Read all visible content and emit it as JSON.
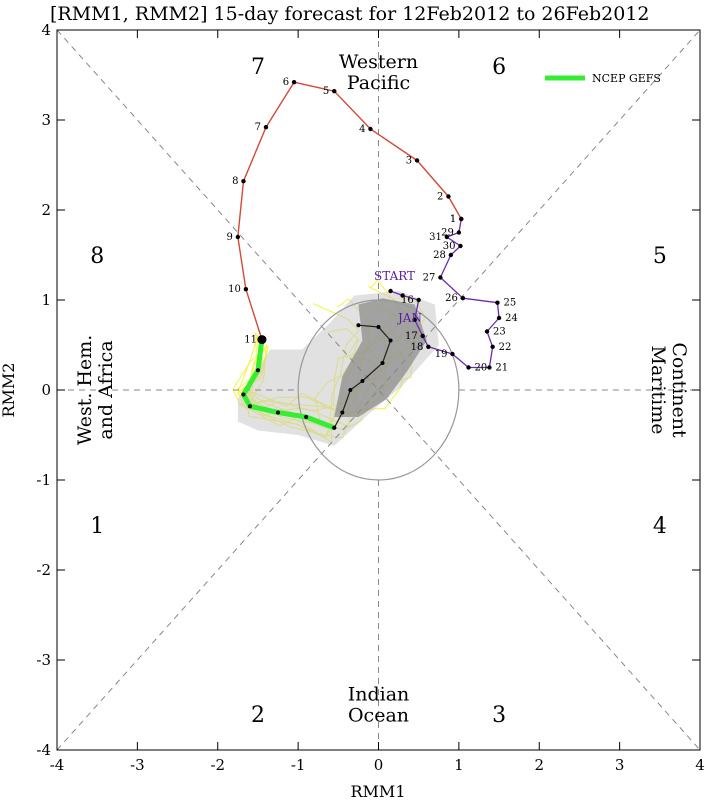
{
  "chart_data": {
    "type": "scatter",
    "title": "[RMM1, RMM2] 15-day forecast for 12Feb2012 to 26Feb2012",
    "xlabel": "RMM1",
    "ylabel": "RMM2",
    "xlim": [
      -4,
      4
    ],
    "ylim": [
      -4,
      4
    ],
    "x_ticks": [
      -4,
      -3,
      -2,
      -1,
      0,
      1,
      2,
      3,
      4
    ],
    "y_ticks": [
      -4,
      -3,
      -2,
      -1,
      0,
      1,
      2,
      3,
      4
    ],
    "phase_labels": [
      {
        "text": "7",
        "x": -1.5,
        "y": 3.6
      },
      {
        "text": "6",
        "x": 1.5,
        "y": 3.6
      },
      {
        "text": "8",
        "x": -3.5,
        "y": 1.5
      },
      {
        "text": "5",
        "x": 3.5,
        "y": 1.5
      },
      {
        "text": "1",
        "x": -3.5,
        "y": -1.5
      },
      {
        "text": "4",
        "x": 3.5,
        "y": -1.5
      },
      {
        "text": "2",
        "x": -1.5,
        "y": -3.6
      },
      {
        "text": "3",
        "x": 1.5,
        "y": -3.6
      }
    ],
    "region_labels": {
      "top": [
        "Western",
        "Pacific"
      ],
      "bottom": [
        "Indian",
        "Ocean"
      ],
      "left": [
        "West. Hem.",
        "and Africa"
      ],
      "right": [
        "Maritime",
        "Continent"
      ]
    },
    "markers": {
      "start": "START",
      "jan": "JAN"
    },
    "legend": [
      {
        "name": "NCEP GEFS",
        "color": "#33ee33"
      }
    ],
    "unit_circle_radius": 1,
    "colors": {
      "observed": "#6a2cb0",
      "forecast_mean": "#d24a3a",
      "ensemble": "#f2f24a",
      "gefs": "#33ee33",
      "spread": "#888888"
    },
    "observed_path": [
      {
        "label": "",
        "x": 0.15,
        "y": 1.1
      },
      {
        "label": "",
        "x": 0.3,
        "y": 1.05
      },
      {
        "label": "16",
        "x": 0.5,
        "y": 1.0
      },
      {
        "label": "",
        "x": 0.45,
        "y": 0.78
      },
      {
        "label": "17",
        "x": 0.55,
        "y": 0.6
      },
      {
        "label": "18",
        "x": 0.62,
        "y": 0.48
      },
      {
        "label": "19",
        "x": 0.92,
        "y": 0.4
      },
      {
        "label": "20",
        "x": 1.12,
        "y": 0.25
      },
      {
        "label": "21",
        "x": 1.38,
        "y": 0.25
      },
      {
        "label": "22",
        "x": 1.42,
        "y": 0.48
      },
      {
        "label": "23",
        "x": 1.35,
        "y": 0.65
      },
      {
        "label": "24",
        "x": 1.5,
        "y": 0.8
      },
      {
        "label": "25",
        "x": 1.48,
        "y": 0.97
      },
      {
        "label": "26",
        "x": 1.05,
        "y": 1.02
      },
      {
        "label": "27",
        "x": 0.77,
        "y": 1.25
      },
      {
        "label": "28",
        "x": 0.9,
        "y": 1.5
      },
      {
        "label": "30",
        "x": 1.02,
        "y": 1.6
      },
      {
        "label": "31",
        "x": 0.85,
        "y": 1.7
      },
      {
        "label": "29",
        "x": 1.0,
        "y": 1.75
      },
      {
        "label": "1",
        "x": 1.03,
        "y": 1.9
      }
    ],
    "forecast_mean_path": [
      {
        "label": "1",
        "x": 1.03,
        "y": 1.9
      },
      {
        "label": "2",
        "x": 0.87,
        "y": 2.15
      },
      {
        "label": "3",
        "x": 0.48,
        "y": 2.55
      },
      {
        "label": "4",
        "x": -0.1,
        "y": 2.9
      },
      {
        "label": "5",
        "x": -0.55,
        "y": 3.32
      },
      {
        "label": "6",
        "x": -1.05,
        "y": 3.42
      },
      {
        "label": "7",
        "x": -1.4,
        "y": 2.92
      },
      {
        "label": "8",
        "x": -1.68,
        "y": 2.32
      },
      {
        "label": "9",
        "x": -1.75,
        "y": 1.7
      },
      {
        "label": "10",
        "x": -1.65,
        "y": 1.12
      },
      {
        "label": "11",
        "x": -1.45,
        "y": 0.56
      }
    ],
    "gefs_mean_path": [
      {
        "x": -1.45,
        "y": 0.56
      },
      {
        "x": -1.5,
        "y": 0.22
      },
      {
        "x": -1.68,
        "y": -0.05
      },
      {
        "x": -1.6,
        "y": -0.18
      },
      {
        "x": -1.25,
        "y": -0.25
      },
      {
        "x": -0.9,
        "y": -0.3
      },
      {
        "x": -0.55,
        "y": -0.42
      }
    ],
    "gefs_inner_points": [
      {
        "x": -0.55,
        "y": -0.42
      },
      {
        "x": -0.45,
        "y": -0.25
      },
      {
        "x": -0.35,
        "y": 0.0
      },
      {
        "x": -0.2,
        "y": 0.1
      },
      {
        "x": 0.05,
        "y": 0.3
      },
      {
        "x": 0.15,
        "y": 0.55
      },
      {
        "x": 0.0,
        "y": 0.7
      },
      {
        "x": -0.25,
        "y": 0.72
      }
    ],
    "spread_dark": [
      {
        "x": -0.55,
        "y": -0.3
      },
      {
        "x": -0.45,
        "y": 0.15
      },
      {
        "x": -0.2,
        "y": 0.55
      },
      {
        "x": -0.25,
        "y": 0.95
      },
      {
        "x": 0.05,
        "y": 1.02
      },
      {
        "x": 0.45,
        "y": 0.95
      },
      {
        "x": 0.6,
        "y": 0.55
      },
      {
        "x": 0.35,
        "y": 0.2
      },
      {
        "x": 0.1,
        "y": -0.1
      },
      {
        "x": -0.25,
        "y": -0.3
      }
    ],
    "spread_light": [
      {
        "x": -1.75,
        "y": -0.35
      },
      {
        "x": -1.5,
        "y": -0.45
      },
      {
        "x": -1.0,
        "y": -0.5
      },
      {
        "x": -0.55,
        "y": -0.62
      },
      {
        "x": -0.1,
        "y": -0.25
      },
      {
        "x": 0.3,
        "y": 0.05
      },
      {
        "x": 0.75,
        "y": 0.5
      },
      {
        "x": 0.7,
        "y": 0.95
      },
      {
        "x": 0.25,
        "y": 1.1
      },
      {
        "x": -0.3,
        "y": 1.05
      },
      {
        "x": -0.6,
        "y": 0.75
      },
      {
        "x": -0.95,
        "y": 0.45
      },
      {
        "x": -1.35,
        "y": 0.45
      },
      {
        "x": -1.55,
        "y": 0.15
      },
      {
        "x": -1.75,
        "y": -0.1
      }
    ]
  }
}
